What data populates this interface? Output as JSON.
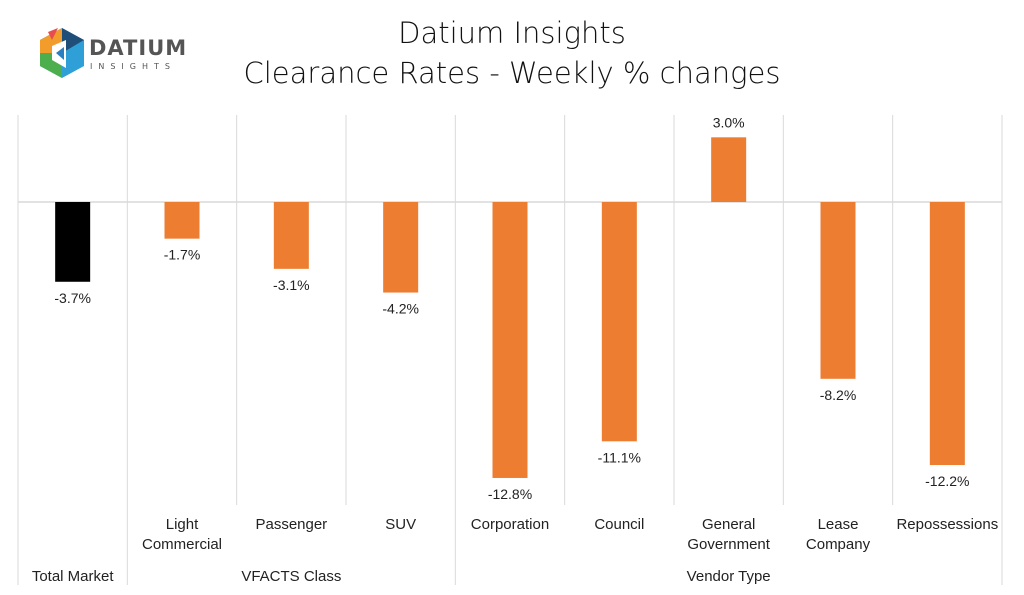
{
  "logo": {
    "name": "DATIUM",
    "sub": "INSIGHTS"
  },
  "chart_data": {
    "type": "bar",
    "title": "Datium Insights",
    "subtitle": "Clearance Rates - Weekly % changes",
    "categories": [
      "Total Market",
      "Light Commercial",
      "Passenger",
      "SUV",
      "Corporation",
      "Council",
      "General Government",
      "Lease Company",
      "Repossessions"
    ],
    "groups": [
      {
        "label": "Total Market",
        "categories": [
          "Total Market"
        ]
      },
      {
        "label": "VFACTS Class",
        "categories": [
          "Light Commercial",
          "Passenger",
          "SUV"
        ]
      },
      {
        "label": "Vendor Type",
        "categories": [
          "Corporation",
          "Council",
          "General Government",
          "Lease Company",
          "Repossessions"
        ]
      }
    ],
    "values": [
      -3.7,
      -1.7,
      -3.1,
      -4.2,
      -12.8,
      -11.1,
      3.0,
      -8.2,
      -12.2
    ],
    "data_labels": [
      "-3.7%",
      "-1.7%",
      "-3.1%",
      "-4.2%",
      "-12.8%",
      "-11.1%",
      "3.0%",
      "-8.2%",
      "-12.2%"
    ],
    "colors": {
      "total": "#000000",
      "other": "#ED7D31",
      "grid": "#D9D9D9"
    },
    "unit": "%",
    "ylim": [
      -13.5,
      4
    ],
    "grid": false,
    "legend": "none"
  }
}
